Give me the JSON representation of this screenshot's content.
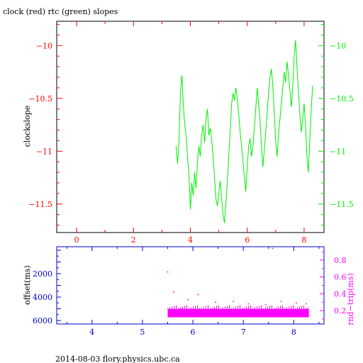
{
  "title": "clock (red) rtc (green) slopes",
  "footer": "2014-08-03 flory.physics.ubc.ca",
  "colors": {
    "red": "#ff0000",
    "green": "#00ee00",
    "blue": "#0000cc",
    "magenta": "#ff00ff",
    "black": "#000000"
  },
  "chart_data": [
    {
      "type": "line",
      "title": "clock (red) rtc (green) slopes",
      "ylabel": "clockslope",
      "xlim": [
        -0.7,
        8.7
      ],
      "ylim": [
        -11.77,
        -9.77
      ],
      "x_ticks": [
        0,
        2,
        4,
        6,
        8
      ],
      "y_ticks": [
        -10,
        -10.5,
        -11,
        -11.5
      ],
      "y_ticks_right": [
        -10,
        -10.5,
        -11,
        -11.5
      ],
      "series": [
        {
          "color": "green",
          "x": [
            3.5,
            3.55,
            3.6,
            3.65,
            3.7,
            3.75,
            3.8,
            3.85,
            3.9,
            3.95,
            4.0,
            4.05,
            4.1,
            4.15,
            4.2,
            4.25,
            4.3,
            4.35,
            4.4,
            4.45,
            4.5,
            4.55,
            4.6,
            4.65,
            4.7,
            4.75,
            4.8,
            4.85,
            4.9,
            4.95,
            5.0,
            5.05,
            5.1,
            5.15,
            5.2,
            5.25,
            5.3,
            5.35,
            5.4,
            5.45,
            5.5,
            5.55,
            5.6,
            5.65,
            5.7,
            5.75,
            5.8,
            5.85,
            5.9,
            5.95,
            6.0,
            6.05,
            6.1,
            6.15,
            6.2,
            6.25,
            6.3,
            6.35,
            6.4,
            6.45,
            6.5,
            6.55,
            6.6,
            6.65,
            6.7,
            6.75,
            6.8,
            6.85,
            6.9,
            6.95,
            7.0,
            7.05,
            7.1,
            7.15,
            7.2,
            7.25,
            7.3,
            7.35,
            7.4,
            7.45,
            7.5,
            7.55,
            7.6,
            7.65,
            7.7,
            7.75,
            7.8,
            7.85,
            7.9,
            7.95,
            8.0,
            8.05,
            8.1,
            8.15,
            8.2,
            8.25,
            8.3
          ],
          "values": [
            -10.95,
            -11.12,
            -10.9,
            -10.45,
            -10.28,
            -10.55,
            -10.75,
            -10.85,
            -11.05,
            -11.22,
            -11.55,
            -11.3,
            -11.42,
            -11.2,
            -11.35,
            -11.1,
            -10.95,
            -11.05,
            -10.85,
            -10.75,
            -10.92,
            -10.7,
            -10.6,
            -10.85,
            -10.78,
            -10.9,
            -11.05,
            -11.25,
            -11.45,
            -11.52,
            -11.4,
            -11.28,
            -11.45,
            -11.6,
            -11.68,
            -11.5,
            -11.3,
            -11.05,
            -10.82,
            -10.55,
            -10.45,
            -10.52,
            -10.4,
            -10.5,
            -10.65,
            -10.82,
            -10.95,
            -11.1,
            -11.25,
            -11.38,
            -11.15,
            -10.95,
            -10.88,
            -11.05,
            -10.95,
            -10.78,
            -10.6,
            -10.4,
            -10.55,
            -10.72,
            -10.95,
            -11.15,
            -10.98,
            -10.82,
            -10.65,
            -10.45,
            -10.3,
            -10.22,
            -10.38,
            -10.62,
            -10.9,
            -11.05,
            -10.85,
            -10.7,
            -10.55,
            -10.4,
            -10.25,
            -10.35,
            -10.15,
            -10.28,
            -10.42,
            -10.58,
            -10.4,
            -10.1,
            -9.95,
            -10.2,
            -10.42,
            -10.65,
            -10.82,
            -10.7,
            -10.55,
            -10.75,
            -11.05,
            -11.2,
            -10.9,
            -10.6,
            -10.38
          ]
        }
      ]
    },
    {
      "type": "scatter",
      "ylabel": "offset(ms)",
      "ylabel_right": "rnd−trip(ms)",
      "xlim": [
        3.3,
        8.6
      ],
      "ylim_left": [
        -300,
        6300
      ],
      "ylim_right": [
        0.04,
        0.96
      ],
      "x_ticks": [
        4,
        5,
        6,
        7,
        8
      ],
      "y_ticks": [
        2000,
        4000,
        6000
      ],
      "y_ticks_right": [
        0.2,
        0.4,
        0.6,
        0.8
      ],
      "series": [
        {
          "color": "magenta",
          "axis": "right",
          "x": [
            5.5,
            5.62,
            5.9,
            6.1,
            6.45,
            6.8,
            7.1,
            7.45,
            7.58,
            7.75,
            8.05,
            8.25
          ],
          "values": [
            0.66,
            0.42,
            0.33,
            0.39,
            0.3,
            0.31,
            0.28,
            0.27,
            0.94,
            0.31,
            0.29,
            0.28
          ]
        }
      ],
      "band": {
        "color": "magenta",
        "x": [
          5.5,
          8.3
        ],
        "range": [
          0.12,
          0.22
        ]
      }
    }
  ]
}
